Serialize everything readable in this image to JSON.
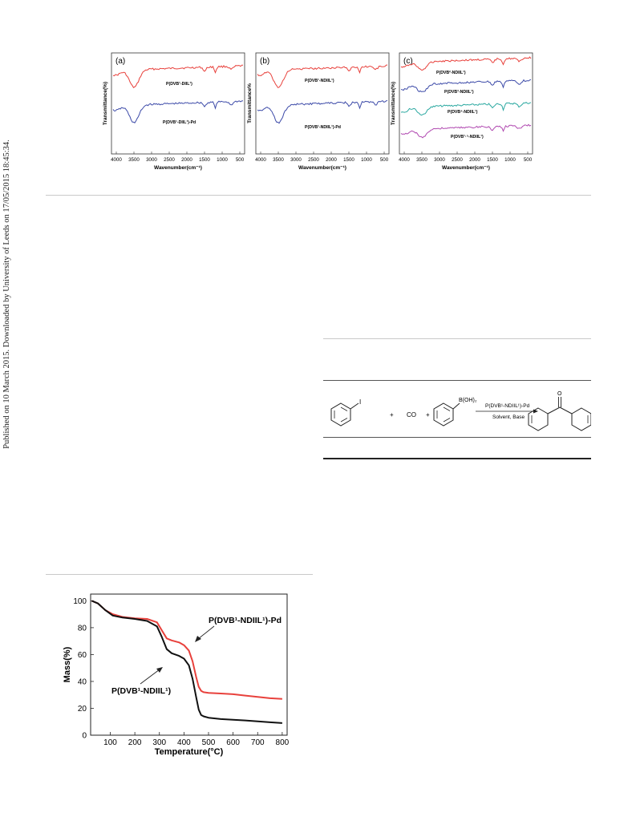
{
  "side_note": "Published on 10 March 2015. Downloaded by University of Leeds on 17/05/2015 18:45:34.",
  "ftir_panels": [
    {
      "tag": "(a)",
      "ylabel": "Transmittance(%)",
      "xlabel": "Wavenumber(cm⁻¹)",
      "ticks": [
        "4000",
        "3500",
        "3000",
        "2500",
        "2000",
        "1500",
        "1000",
        "500"
      ],
      "labels": [
        "P(DVB¹-DIIL¹)",
        "P(DVB¹-DIIL¹)-Pd"
      ]
    },
    {
      "tag": "(b)",
      "ylabel": "Transmittance%",
      "xlabel": "Wavenumber(cm⁻¹)",
      "ticks": [
        "4000",
        "3500",
        "3000",
        "2500",
        "2000",
        "1500",
        "1000",
        "500"
      ],
      "labels": [
        "P(DVB¹-NDIIL¹)",
        "P(DVB¹-NDIIL¹)-Pd"
      ]
    },
    {
      "tag": "(c)",
      "ylabel": "Transmittance(%)",
      "xlabel": "Wavenumber(cm⁻¹)",
      "ticks": [
        "4000",
        "3500",
        "3000",
        "2500",
        "2000",
        "1500",
        "1000",
        "500"
      ],
      "labels": [
        "P(DVB²-NDIIL¹)",
        "P(DVB³-NDIIL¹)",
        "P(DVB⁴-NDIIL¹)",
        "P(DVB¹·⁵-NDIIL¹)"
      ]
    }
  ],
  "scheme": {
    "iodide": "I",
    "plus": "+",
    "co": "CO",
    "boronic": "B(OH)₂",
    "catalyst": "P(DVB¹-NDIIL¹)-Pd",
    "conditions": "Solvent, Base",
    "ketone_o": "O"
  },
  "chart_data": {
    "type": "line",
    "xlabel": "Temperature(°C)",
    "ylabel": "Mass(%)",
    "xlim": [
      20,
      820
    ],
    "ylim": [
      0,
      105
    ],
    "xticks": [
      100,
      200,
      300,
      400,
      500,
      600,
      700,
      800
    ],
    "yticks": [
      0,
      20,
      40,
      60,
      80,
      100
    ],
    "series": [
      {
        "name": "P(DVB¹-NDIIL¹)-Pd",
        "color": "#e8413c",
        "x": [
          25,
          50,
          80,
          110,
          150,
          200,
          250,
          290,
          310,
          330,
          350,
          380,
          400,
          420,
          435,
          450,
          460,
          470,
          480,
          500,
          550,
          600,
          650,
          700,
          750,
          800
        ],
        "y": [
          100,
          98,
          93,
          90,
          88,
          87,
          86.5,
          84,
          78,
          72,
          70.5,
          69,
          67,
          63,
          55,
          43,
          36,
          33,
          32,
          31.5,
          31,
          30.5,
          29.5,
          28.5,
          27.5,
          27
        ]
      },
      {
        "name": "P(DVB¹-NDIIL¹)",
        "color": "#111111",
        "x": [
          25,
          50,
          80,
          110,
          150,
          200,
          250,
          290,
          310,
          330,
          350,
          380,
          400,
          420,
          435,
          450,
          460,
          470,
          480,
          500,
          550,
          600,
          650,
          700,
          750,
          800
        ],
        "y": [
          100,
          98,
          93,
          89,
          87.5,
          86.5,
          85,
          81,
          73,
          64,
          61,
          59,
          57,
          52,
          42,
          28,
          19,
          15,
          14,
          13,
          12,
          11.5,
          11,
          10.3,
          9.6,
          9
        ]
      }
    ],
    "annotations": [
      "P(DVB¹-NDIIL¹)-Pd",
      "P(DVB¹-NDIIL¹)"
    ]
  }
}
